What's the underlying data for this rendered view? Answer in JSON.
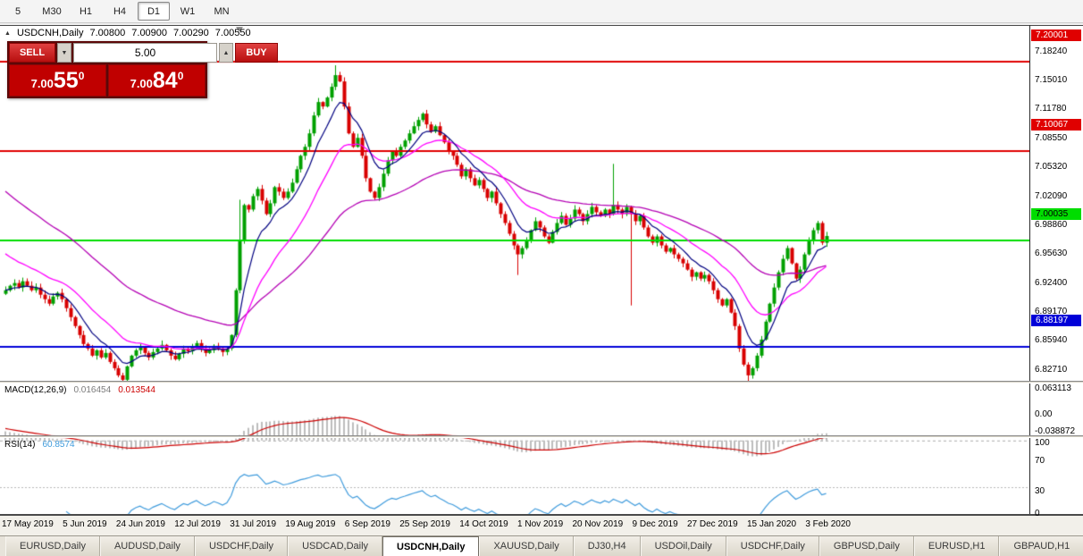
{
  "toolbar": {
    "timeframes": [
      "5",
      "M30",
      "H1",
      "H4",
      "D1",
      "W1",
      "MN"
    ],
    "active": "D1"
  },
  "quote_bar": {
    "symbol_period": "USDCNH,Daily",
    "open": "7.00800",
    "high": "7.00900",
    "low": "7.00290",
    "close": "7.00550"
  },
  "trade_panel": {
    "sell_label": "SELL",
    "buy_label": "BUY",
    "volume": "5.00",
    "sell_price": {
      "main": "7.00",
      "big": "55",
      "sup": "0"
    },
    "buy_price": {
      "main": "7.00",
      "big": "84",
      "sup": "0"
    }
  },
  "price_scale": {
    "labels": [
      "7.18240",
      "7.15010",
      "7.11780",
      "7.08550",
      "7.05320",
      "7.02090",
      "6.98860",
      "6.95630",
      "6.92400",
      "6.89170",
      "6.85940",
      "6.82710"
    ]
  },
  "hlines": [
    {
      "label": "7.20001",
      "value": 7.20001,
      "color": "#e00000",
      "text": "#ffffff"
    },
    {
      "label": "7.10067",
      "value": 7.10067,
      "color": "#e00000",
      "text": "#ffffff"
    },
    {
      "label": "7.00035",
      "value": 7.00035,
      "color": "#00dd00",
      "text": "#000000"
    },
    {
      "label": "6.88197",
      "value": 6.88197,
      "color": "#0000d8",
      "text": "#ffffff"
    }
  ],
  "macd_panel": {
    "name": "MACD(12,26,9)",
    "value_main": "0.016454",
    "value_signal": "0.013544",
    "scale": [
      {
        "label": "0.063113",
        "value": 0.063113
      },
      {
        "label": "0.00",
        "value": 0
      },
      {
        "label": "-0.038872",
        "value": -0.038872
      }
    ],
    "range": {
      "max": 0.072,
      "min": -0.048
    }
  },
  "rsi_panel": {
    "name": "RSI(14)",
    "value": "60.8574",
    "scale": [
      {
        "label": "100",
        "value": 100
      },
      {
        "label": "70",
        "value": 70
      },
      {
        "label": "30",
        "value": 30
      },
      {
        "label": "0",
        "value": 0
      }
    ],
    "levels": [
      70,
      30
    ]
  },
  "date_axis": [
    "17 May 2019",
    "5 Jun 2019",
    "24 Jun 2019",
    "12 Jul 2019",
    "31 Jul 2019",
    "19 Aug 2019",
    "6 Sep 2019",
    "25 Sep 2019",
    "14 Oct 2019",
    "1 Nov 2019",
    "20 Nov 2019",
    "9 Dec 2019",
    "27 Dec 2019",
    "15 Jan 2020",
    "3 Feb 2020"
  ],
  "tabs": {
    "items": [
      "EURUSD,Daily",
      "AUDUSD,Daily",
      "USDCHF,Daily",
      "USDCAD,Daily",
      "USDCNH,Daily",
      "XAUUSD,Daily",
      "DJ30,H4",
      "USDOil,Daily",
      "USDCHF,Daily",
      "GBPUSD,Daily",
      "EURUSD,H1",
      "GBPAUD,H1"
    ],
    "active_index": 4
  },
  "chart_data": {
    "type": "candlestick",
    "symbol": "USDCNH",
    "period": "Daily",
    "title": "USDCNH,Daily",
    "price_range": {
      "top": 7.212,
      "bottom": 6.815
    },
    "indicators": {
      "ma_periods": {
        "fast": 8,
        "med": 20,
        "slow": 50
      },
      "macd": {
        "fast": 12,
        "slow": 26,
        "signal": 9,
        "current_hist": 0.016454,
        "current_signal": 0.013544
      },
      "rsi": {
        "period": 14,
        "current": 60.8574
      }
    },
    "colors": {
      "up": "#00a000",
      "down": "#d80000",
      "ma_fast": "#000080",
      "ma_med": "#ff00ff",
      "ma_slow": "#b400b4",
      "macd_hist": "#bdbdbd",
      "macd_signal": "#cc0000",
      "rsi": "#3f9bdc",
      "level_dash": "#b8b8b8"
    },
    "closes": [
      6.945,
      6.95,
      6.953,
      6.948,
      6.955,
      6.95,
      6.945,
      6.948,
      6.94,
      6.935,
      6.93,
      6.938,
      6.942,
      6.935,
      6.925,
      6.915,
      6.905,
      6.895,
      6.885,
      6.88,
      6.872,
      6.878,
      6.87,
      6.875,
      6.865,
      6.858,
      6.85,
      6.845,
      6.86,
      6.872,
      6.878,
      6.882,
      6.875,
      6.87,
      6.876,
      6.88,
      6.884,
      6.878,
      6.872,
      6.868,
      6.874,
      6.88,
      6.877,
      6.882,
      6.886,
      6.88,
      6.875,
      6.878,
      6.883,
      6.88,
      6.876,
      6.88,
      6.895,
      6.945,
      7.0,
      7.04,
      7.035,
      7.05,
      7.058,
      7.045,
      7.03,
      7.042,
      7.06,
      7.055,
      7.048,
      7.055,
      7.065,
      7.08,
      7.095,
      7.105,
      7.12,
      7.14,
      7.155,
      7.15,
      7.16,
      7.172,
      7.185,
      7.178,
      7.15,
      7.12,
      7.105,
      7.115,
      7.095,
      7.07,
      7.055,
      7.048,
      7.06,
      7.075,
      7.09,
      7.1,
      7.095,
      7.105,
      7.112,
      7.12,
      7.128,
      7.135,
      7.142,
      7.13,
      7.122,
      7.128,
      7.118,
      7.11,
      7.1,
      7.095,
      7.085,
      7.072,
      7.08,
      7.07,
      7.062,
      7.068,
      7.058,
      7.048,
      7.055,
      7.042,
      7.03,
      7.02,
      7.008,
      6.995,
      6.985,
      6.992,
      7.0,
      7.012,
      7.022,
      7.015,
      7.005,
      6.998,
      7.01,
      7.02,
      7.028,
      7.018,
      7.025,
      7.035,
      7.03,
      7.022,
      7.03,
      7.038,
      7.032,
      7.028,
      7.035,
      7.03,
      7.04,
      7.035,
      7.03,
      7.038,
      7.03,
      7.022,
      7.028,
      7.015,
      7.005,
      6.998,
      7.005,
      6.995,
      6.988,
      6.992,
      6.985,
      6.98,
      6.975,
      6.968,
      6.96,
      6.965,
      6.958,
      6.962,
      6.955,
      6.945,
      6.935,
      6.928,
      6.935,
      6.92,
      6.905,
      6.88,
      6.862,
      6.85,
      6.858,
      6.872,
      6.89,
      6.91,
      6.93,
      6.948,
      6.965,
      6.98,
      6.992,
      6.975,
      6.958,
      6.968,
      6.985,
      7.0,
      7.012,
      7.02,
      6.998,
      7.0055
    ],
    "wick_overrides": {
      "27": {
        "low": 6.843
      },
      "54": {
        "high": 7.046
      },
      "76": {
        "high": 7.196
      },
      "118": {
        "low": 6.962
      },
      "140": {
        "high": 7.086
      },
      "144": {
        "low": 6.928
      },
      "171": {
        "low": 6.842
      }
    }
  }
}
